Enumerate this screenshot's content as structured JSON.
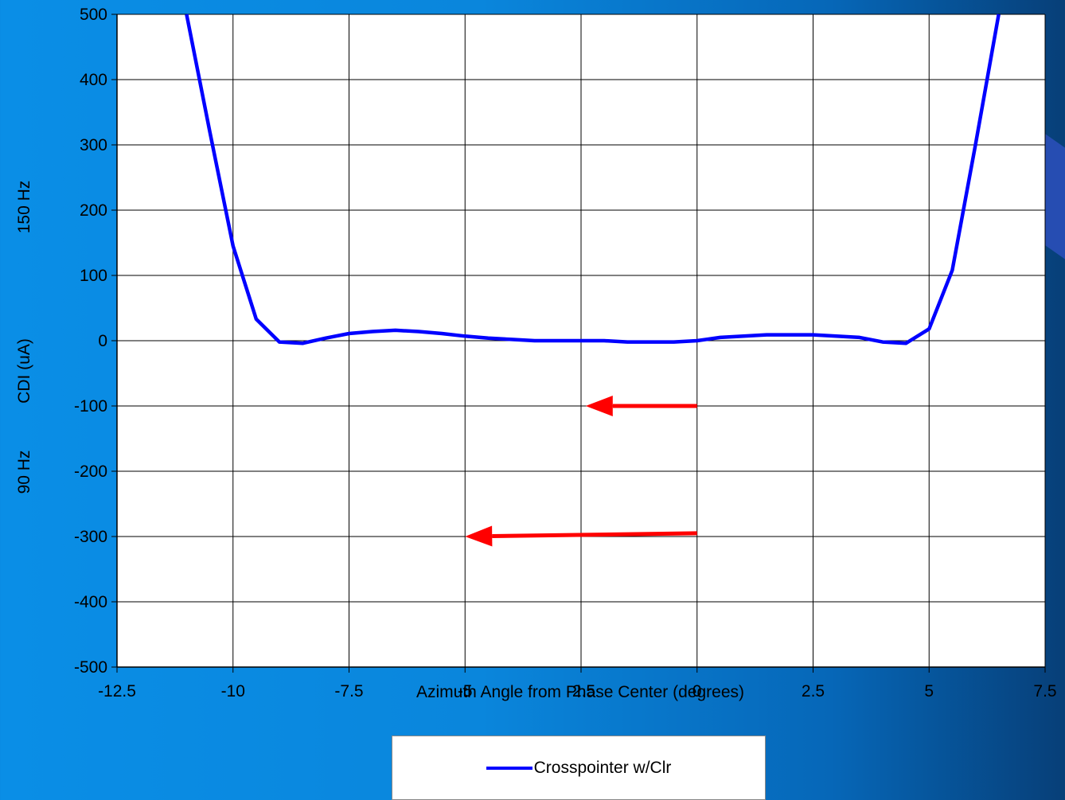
{
  "chart_data": {
    "type": "line",
    "title": "",
    "xlabel": "Azimuth Angle from Phase Center (degrees)",
    "ylabel": "CDI (uA)",
    "ylabel_upper": "150 Hz",
    "ylabel_lower": "90 Hz",
    "xlim": [
      -12.5,
      7.5
    ],
    "ylim": [
      -500,
      500
    ],
    "xticks": [
      "-12.5",
      "-10",
      "-7.5",
      "-5",
      "-2.5",
      "0",
      "2.5",
      "5",
      "7.5"
    ],
    "yticks": [
      "500",
      "400",
      "300",
      "200",
      "100",
      "0",
      "-100",
      "-200",
      "-300",
      "-400",
      "-500"
    ],
    "grid": true,
    "legend_position": "bottom",
    "series": [
      {
        "name": "Crosspointer w/Clr",
        "color": "#0000ff",
        "x": [
          -11,
          -10.5,
          -10,
          -9.5,
          -9,
          -8.5,
          -8,
          -7.5,
          -7,
          -6.5,
          -6,
          -5.5,
          -5,
          -4.5,
          -4,
          -3.5,
          -3,
          -2.5,
          -2,
          -1.5,
          -1,
          -0.5,
          0,
          0.5,
          1,
          1.5,
          2,
          2.5,
          3,
          3.5,
          4,
          4.5,
          5,
          5.5,
          6,
          6.5
        ],
        "y": [
          500,
          320,
          145,
          33,
          -2,
          -4,
          4,
          11,
          14,
          16,
          14,
          11,
          7,
          4,
          2,
          0,
          0,
          0,
          0,
          -2,
          -2,
          -2,
          0,
          5,
          7,
          9,
          9,
          9,
          7,
          5,
          -2,
          -4,
          18,
          108,
          300,
          500
        ]
      }
    ],
    "annotations": [
      {
        "type": "arrow",
        "color": "#ff0000",
        "from": [
          0,
          -100
        ],
        "to": [
          -2.4,
          -100
        ]
      },
      {
        "type": "arrow",
        "color": "#ff0000",
        "from": [
          0,
          -295
        ],
        "to": [
          -5,
          -300
        ]
      }
    ]
  }
}
